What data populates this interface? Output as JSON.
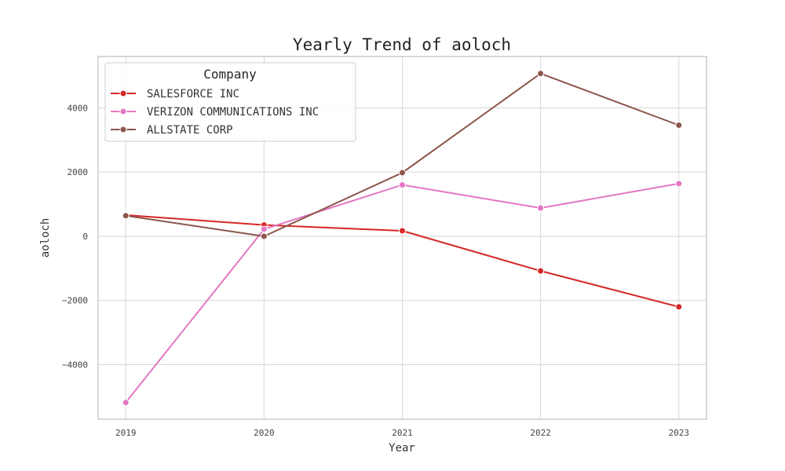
{
  "chart_data": {
    "type": "line",
    "title": "Yearly Trend of aoloch",
    "xlabel": "Year",
    "ylabel": "aoloch",
    "x": [
      2019,
      2020,
      2021,
      2022,
      2023
    ],
    "x_tick_labels": [
      "2019",
      "2020",
      "2021",
      "2022",
      "2023"
    ],
    "y_ticks": [
      -4000,
      -2000,
      0,
      2000,
      4000
    ],
    "y_tick_labels": [
      "−4000",
      "−2000",
      "0",
      "2000",
      "4000"
    ],
    "xlim": [
      2018.8,
      2023.2
    ],
    "ylim": [
      -5700,
      5600
    ],
    "grid": true,
    "legend": {
      "title": "Company",
      "placement": "top-left"
    },
    "series": [
      {
        "name": "SALESFORCE INC",
        "color": "#d62728",
        "values": [
          660,
          350,
          170,
          -1080,
          -2200
        ]
      },
      {
        "name": "VERIZON COMMUNICATIONS INC",
        "color": "#e377c2",
        "values": [
          -5180,
          220,
          1600,
          880,
          1640
        ]
      },
      {
        "name": "ALLSTATE CORP",
        "color": "#8c564b",
        "values": [
          640,
          0,
          1980,
          5070,
          3460
        ]
      }
    ]
  }
}
